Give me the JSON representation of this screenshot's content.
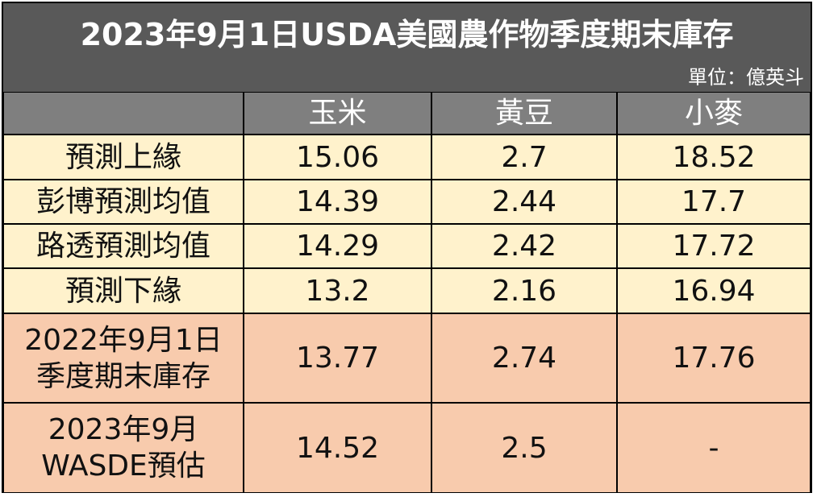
{
  "header": {
    "title": "2023年9月1日USDA美國農作物季度期末庫存",
    "unit": "單位：億英斗"
  },
  "table": {
    "columns": [
      "玉米",
      "黃豆",
      "小麥"
    ],
    "rows": [
      {
        "label": [
          "預測上緣"
        ],
        "values": [
          "15.06",
          "2.7",
          "18.52"
        ],
        "color": "#fff2cc"
      },
      {
        "label": [
          "彭博預測均值"
        ],
        "values": [
          "14.39",
          "2.44",
          "17.7"
        ],
        "color": "#fff2cc"
      },
      {
        "label": [
          "路透預測均值"
        ],
        "values": [
          "14.29",
          "2.42",
          "17.72"
        ],
        "color": "#fff2cc"
      },
      {
        "label": [
          "預測下緣"
        ],
        "values": [
          "13.2",
          "2.16",
          "16.94"
        ],
        "color": "#fff2cc"
      },
      {
        "label": [
          "2022年9月1日",
          "季度期末庫存"
        ],
        "values": [
          "13.77",
          "2.74",
          "17.76"
        ],
        "color": "#f8cbad"
      },
      {
        "label": [
          "2023年9月",
          "WASDE預估"
        ],
        "values": [
          "14.52",
          "2.5",
          "-"
        ],
        "color": "#f8cbad"
      }
    ]
  }
}
